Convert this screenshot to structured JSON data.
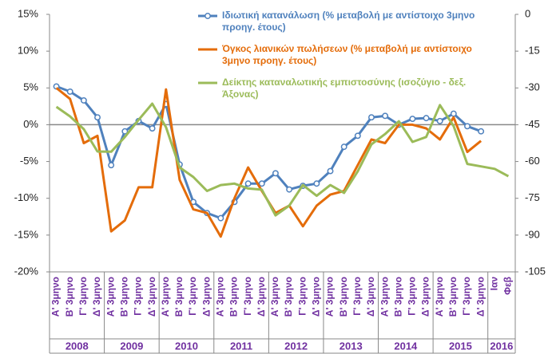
{
  "chart_data": {
    "type": "line",
    "categories": [
      "Α' 3μηνο",
      "Β' 3μηνο",
      "Γ' 3μηνο",
      "Δ' 3μηνο",
      "Α' 3μηνο",
      "Β' 3μηνο",
      "Γ' 3μηνο",
      "Δ' 3μηνο",
      "Α' 3μηνο",
      "Β' 3μηνο",
      "Γ' 3μηνο",
      "Δ' 3μηνο",
      "Α' 3μηνο",
      "Β' 3μηνο",
      "Γ' 3μηνο",
      "Δ' 3μηνο",
      "Α' 3μηνο",
      "Β' 3μηνο",
      "Γ' 3μηνο",
      "Δ' 3μηνο",
      "Α' 3μηνο",
      "Β' 3μηνο",
      "Γ' 3μηνο",
      "Δ' 3μηνο",
      "Α' 3μηνο",
      "Β' 3μηνο",
      "Γ' 3μηνο",
      "Δ' 3μηνο",
      "Α' 3μηνο",
      "Β' 3μηνο",
      "Γ' 3μηνο",
      "Δ' 3μηνο",
      "Ιαν",
      "Φεβ"
    ],
    "years": [
      "2008",
      "2009",
      "2010",
      "2011",
      "2012",
      "2013",
      "2014",
      "2015",
      "2016"
    ],
    "series": [
      {
        "name": "Ιδιωτική κατανάλωση (% μεταβολή με αντίστοιχο 3μηνο προηγ. έτους)",
        "color": "#4f81bd",
        "markers": true,
        "values": [
          5.2,
          4.5,
          3.3,
          1.0,
          -5.5,
          -0.9,
          0.5,
          -0.5,
          2.8,
          -5.4,
          -10.5,
          -12.0,
          -12.7,
          -10.5,
          -8.0,
          -8.0,
          -6.6,
          -8.8,
          -8.3,
          -8.0,
          -6.3,
          -3.0,
          -1.5,
          1.0,
          1.2,
          0.0,
          0.8,
          0.9,
          0.5,
          1.5,
          -0.2,
          -0.9,
          null,
          null
        ]
      },
      {
        "name": "Όγκος λιανικών πωλήσεων (% μεταβολή με αντίστοιχο 3μηνο προηγ. έτους)",
        "color": "#e46c0a",
        "markers": false,
        "values": [
          5.0,
          3.5,
          -2.5,
          -1.5,
          -14.5,
          -13.0,
          -8.5,
          -8.5,
          4.8,
          -7.5,
          -11.5,
          -12.0,
          -15.2,
          -10.0,
          -5.8,
          -9.0,
          -12.0,
          -11.0,
          -13.8,
          -11.0,
          -9.5,
          -9.0,
          -5.5,
          -2.0,
          -2.5,
          0.0,
          0.0,
          -0.5,
          -2.0,
          1.0,
          -3.7,
          -2.2,
          null,
          null
        ]
      },
      {
        "name": "Δείκτης καταναλωτικής εμπιστοσύνης (ισοζύγιο - δεξ. Άξονας)",
        "color": "#9bbb59",
        "markers": false,
        "axis": "y2",
        "values": [
          -37.7,
          -41.6,
          -46.8,
          -55.9,
          -56,
          -50,
          -43,
          -36.4,
          -46,
          -62.4,
          -66.3,
          -72,
          -69.6,
          -69,
          -71,
          -71.5,
          -82,
          -78,
          -69.6,
          -74,
          -69.6,
          -72.8,
          -64,
          -53,
          -48.8,
          -43.6,
          -52,
          -50,
          -37,
          -45.5,
          -61,
          -62,
          -63,
          -66
        ]
      }
    ],
    "ylim": [
      -20,
      15
    ],
    "yticks": [
      {
        "value": 15,
        "label": "15%"
      },
      {
        "value": 10,
        "label": "10%"
      },
      {
        "value": 5,
        "label": "5%"
      },
      {
        "value": 0,
        "label": "0%"
      },
      {
        "value": -5,
        "label": "-5%"
      },
      {
        "value": -10,
        "label": "-10%"
      },
      {
        "value": -15,
        "label": "-15%"
      },
      {
        "value": -20,
        "label": "-20%"
      }
    ],
    "y2lim": [
      -105,
      0
    ],
    "y2ticks": [
      0,
      -15,
      -30,
      -45,
      -60,
      -75,
      -90,
      -105
    ]
  }
}
